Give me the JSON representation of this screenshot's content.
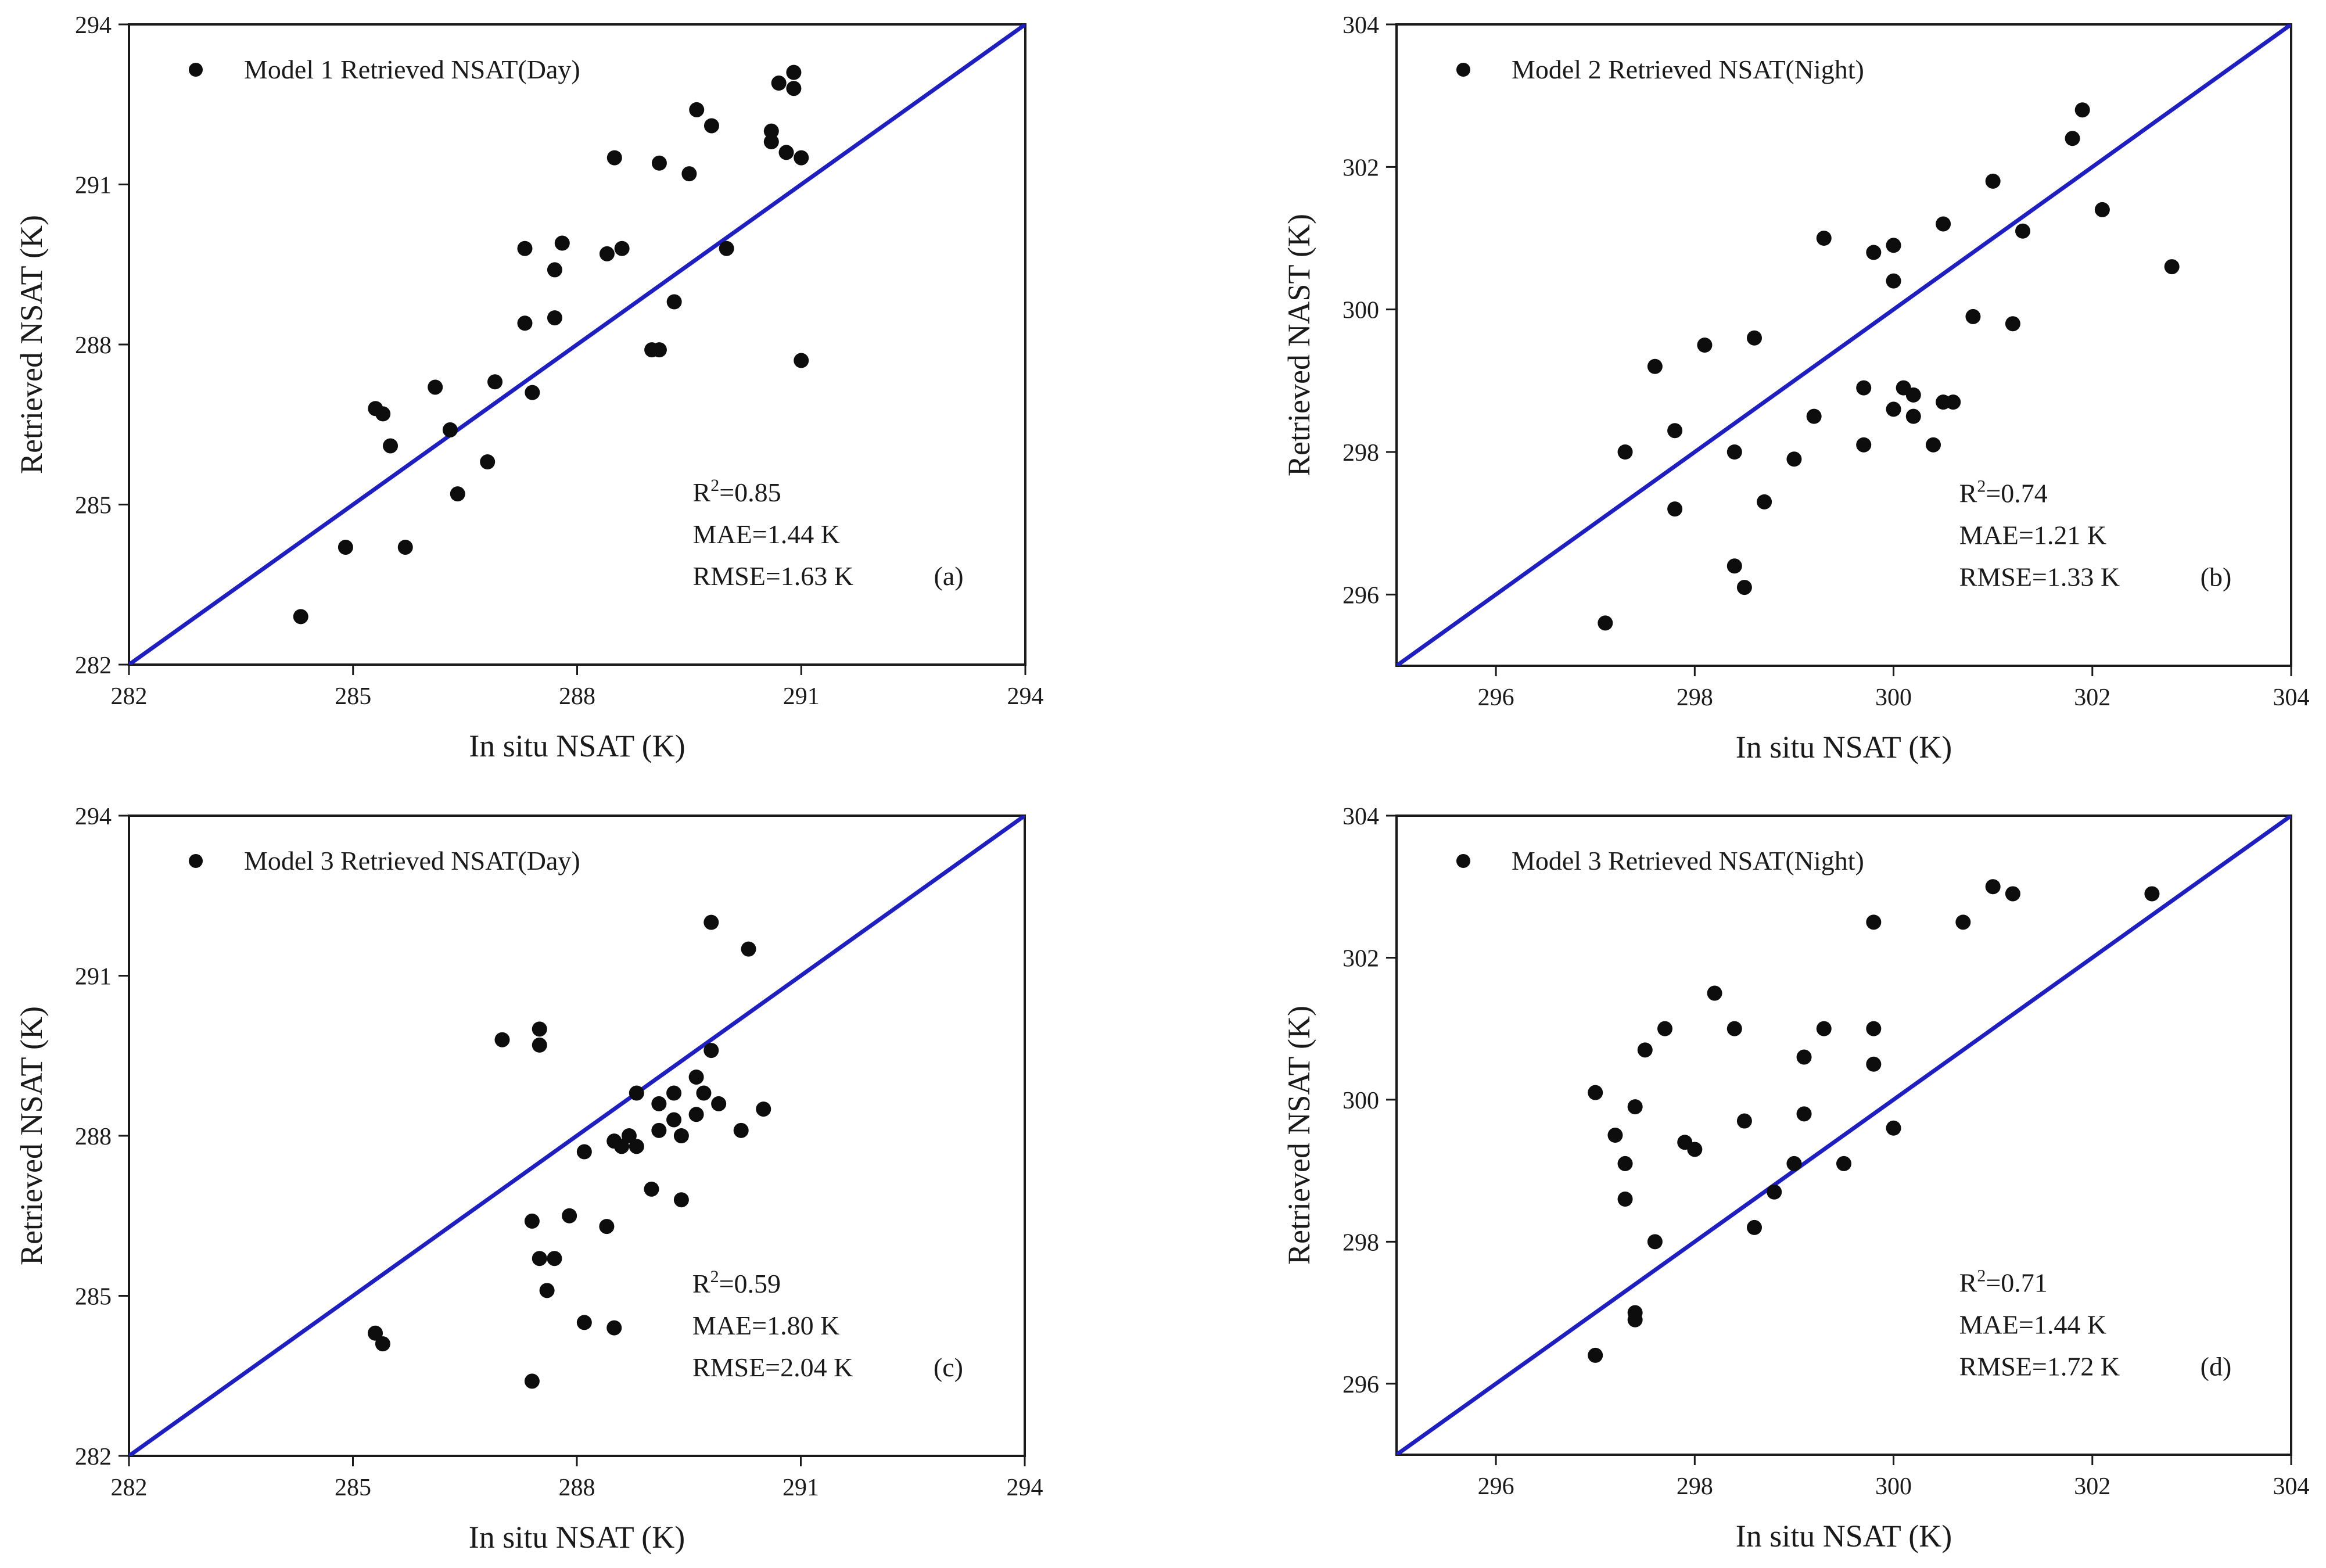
{
  "chart_data": [
    {
      "type": "scatter",
      "panel": "a",
      "legend": "Model 1 Retrieved NSAT(Day)",
      "xlabel": "In situ NSAT (K)",
      "ylabel": "Retrieved NSAT (K)",
      "xlim": [
        282,
        294
      ],
      "ylim": [
        282,
        294
      ],
      "xticks": [
        282,
        285,
        288,
        291,
        294
      ],
      "yticks": [
        282,
        285,
        288,
        291,
        294
      ],
      "reference_line": {
        "from": [
          282,
          282
        ],
        "to": [
          294,
          294
        ],
        "color": "#1f1fbf"
      },
      "stats": {
        "r2": "=0.85",
        "mae": "MAE=1.44 K",
        "rmse": "RMSE=1.63 K",
        "label": "(a)"
      },
      "points": [
        [
          284.3,
          282.9
        ],
        [
          284.9,
          284.2
        ],
        [
          285.3,
          286.8
        ],
        [
          285.4,
          286.7
        ],
        [
          285.5,
          286.1
        ],
        [
          285.7,
          284.2
        ],
        [
          286.1,
          287.2
        ],
        [
          286.3,
          286.4
        ],
        [
          286.4,
          285.2
        ],
        [
          286.8,
          285.8
        ],
        [
          286.9,
          287.3
        ],
        [
          287.3,
          288.4
        ],
        [
          287.3,
          289.8
        ],
        [
          287.4,
          287.1
        ],
        [
          287.7,
          288.5
        ],
        [
          287.7,
          289.4
        ],
        [
          287.8,
          289.9
        ],
        [
          288.4,
          289.7
        ],
        [
          288.5,
          291.5
        ],
        [
          288.6,
          289.8
        ],
        [
          289.0,
          287.9
        ],
        [
          289.1,
          291.4
        ],
        [
          289.1,
          287.9
        ],
        [
          289.3,
          288.8
        ],
        [
          289.5,
          291.2
        ],
        [
          289.6,
          292.4
        ],
        [
          289.8,
          292.1
        ],
        [
          290.0,
          289.8
        ],
        [
          290.6,
          292.0
        ],
        [
          290.6,
          291.8
        ],
        [
          290.7,
          292.9
        ],
        [
          290.8,
          291.6
        ],
        [
          290.9,
          293.1
        ],
        [
          290.9,
          292.8
        ],
        [
          291.0,
          287.7
        ],
        [
          291.0,
          291.5
        ]
      ]
    },
    {
      "type": "scatter",
      "panel": "b",
      "legend": "Model 2 Retrieved NSAT(Night)",
      "xlabel": "In situ NSAT (K)",
      "ylabel": "Retrieved NAST (K)",
      "xlim": [
        295,
        304
      ],
      "ylim": [
        295,
        304
      ],
      "xticks": [
        296,
        298,
        300,
        302,
        304
      ],
      "yticks": [
        296,
        298,
        300,
        302,
        304
      ],
      "reference_line": {
        "from": [
          295,
          295
        ],
        "to": [
          304,
          304
        ],
        "color": "#1f1fbf"
      },
      "stats": {
        "r2": "=0.74",
        "mae": "MAE=1.21 K",
        "rmse": "RMSE=1.33 K",
        "label": "(b)"
      },
      "points": [
        [
          297.1,
          295.6
        ],
        [
          297.3,
          298.0
        ],
        [
          297.6,
          299.2
        ],
        [
          297.8,
          297.2
        ],
        [
          297.8,
          298.3
        ],
        [
          298.1,
          299.5
        ],
        [
          298.4,
          296.4
        ],
        [
          298.4,
          298.0
        ],
        [
          298.5,
          296.1
        ],
        [
          298.6,
          299.6
        ],
        [
          298.7,
          297.3
        ],
        [
          299.0,
          297.9
        ],
        [
          299.2,
          298.5
        ],
        [
          299.3,
          301.0
        ],
        [
          299.7,
          298.1
        ],
        [
          299.7,
          298.9
        ],
        [
          299.8,
          300.8
        ],
        [
          300.0,
          300.9
        ],
        [
          300.0,
          300.4
        ],
        [
          300.0,
          298.6
        ],
        [
          300.1,
          298.9
        ],
        [
          300.2,
          298.8
        ],
        [
          300.2,
          298.5
        ],
        [
          300.4,
          298.1
        ],
        [
          300.5,
          301.2
        ],
        [
          300.5,
          298.7
        ],
        [
          300.6,
          298.7
        ],
        [
          300.8,
          299.9
        ],
        [
          301.0,
          301.8
        ],
        [
          301.2,
          299.8
        ],
        [
          301.3,
          301.1
        ],
        [
          301.8,
          302.4
        ],
        [
          301.9,
          302.8
        ],
        [
          302.1,
          301.4
        ],
        [
          302.8,
          300.6
        ]
      ]
    },
    {
      "type": "scatter",
      "panel": "c",
      "legend": "Model 3 Retrieved NSAT(Day)",
      "xlabel": "In situ NSAT (K)",
      "ylabel": "Retrieved NSAT (K)",
      "xlim": [
        282,
        294
      ],
      "ylim": [
        282,
        294
      ],
      "xticks": [
        282,
        285,
        288,
        291,
        294
      ],
      "yticks": [
        282,
        285,
        288,
        291,
        294
      ],
      "reference_line": {
        "from": [
          282,
          282
        ],
        "to": [
          294,
          294
        ],
        "color": "#1f1fbf"
      },
      "stats": {
        "r2": "=0.59",
        "mae": "MAE=1.80 K",
        "rmse": "RMSE=2.04 K",
        "label": "(c)"
      },
      "points": [
        [
          285.3,
          284.3
        ],
        [
          285.4,
          284.1
        ],
        [
          287.0,
          289.8
        ],
        [
          287.5,
          289.7
        ],
        [
          287.5,
          290.0
        ],
        [
          287.4,
          283.4
        ],
        [
          287.4,
          286.4
        ],
        [
          287.5,
          285.7
        ],
        [
          287.6,
          285.1
        ],
        [
          287.7,
          285.7
        ],
        [
          287.9,
          286.5
        ],
        [
          288.1,
          287.7
        ],
        [
          288.1,
          284.5
        ],
        [
          288.4,
          286.3
        ],
        [
          288.5,
          284.4
        ],
        [
          288.5,
          287.9
        ],
        [
          288.6,
          287.8
        ],
        [
          288.7,
          288.0
        ],
        [
          288.8,
          288.8
        ],
        [
          288.8,
          287.8
        ],
        [
          289.0,
          287.0
        ],
        [
          289.1,
          288.1
        ],
        [
          289.1,
          288.6
        ],
        [
          289.3,
          288.3
        ],
        [
          289.3,
          288.8
        ],
        [
          289.4,
          286.8
        ],
        [
          289.4,
          288.0
        ],
        [
          289.6,
          289.1
        ],
        [
          289.6,
          288.4
        ],
        [
          289.7,
          288.8
        ],
        [
          289.8,
          289.6
        ],
        [
          289.9,
          288.6
        ],
        [
          290.2,
          288.1
        ],
        [
          290.5,
          288.5
        ],
        [
          289.8,
          292.0
        ],
        [
          290.3,
          291.5
        ]
      ]
    },
    {
      "type": "scatter",
      "panel": "d",
      "legend": "Model 3 Retrieved NSAT(Night)",
      "xlabel": "In situ NSAT (K)",
      "ylabel": "Retrieved NSAT (K)",
      "xlim": [
        295,
        304
      ],
      "ylim": [
        295,
        304
      ],
      "xticks": [
        296,
        298,
        300,
        302,
        304
      ],
      "yticks": [
        296,
        298,
        300,
        302,
        304
      ],
      "reference_line": {
        "from": [
          295,
          295
        ],
        "to": [
          304,
          304
        ],
        "color": "#1f1fbf"
      },
      "stats": {
        "r2": "=0.71",
        "mae": "MAE=1.44 K",
        "rmse": "RMSE=1.72 K",
        "label": "(d)"
      },
      "points": [
        [
          297.0,
          296.4
        ],
        [
          297.0,
          300.1
        ],
        [
          297.2,
          299.5
        ],
        [
          297.3,
          299.1
        ],
        [
          297.3,
          298.6
        ],
        [
          297.4,
          299.9
        ],
        [
          297.4,
          296.9
        ],
        [
          297.4,
          297.0
        ],
        [
          297.5,
          300.7
        ],
        [
          297.6,
          298.0
        ],
        [
          297.7,
          301.0
        ],
        [
          297.9,
          299.4
        ],
        [
          298.0,
          299.3
        ],
        [
          298.2,
          301.5
        ],
        [
          298.4,
          301.0
        ],
        [
          298.5,
          299.7
        ],
        [
          298.6,
          298.2
        ],
        [
          298.8,
          298.7
        ],
        [
          299.0,
          299.1
        ],
        [
          299.1,
          300.6
        ],
        [
          299.1,
          299.8
        ],
        [
          299.3,
          301.0
        ],
        [
          299.5,
          299.1
        ],
        [
          299.8,
          302.5
        ],
        [
          299.8,
          301.0
        ],
        [
          299.8,
          300.5
        ],
        [
          300.0,
          299.6
        ],
        [
          300.7,
          302.5
        ],
        [
          301.0,
          303.0
        ],
        [
          301.2,
          302.9
        ],
        [
          302.6,
          302.9
        ]
      ]
    }
  ]
}
